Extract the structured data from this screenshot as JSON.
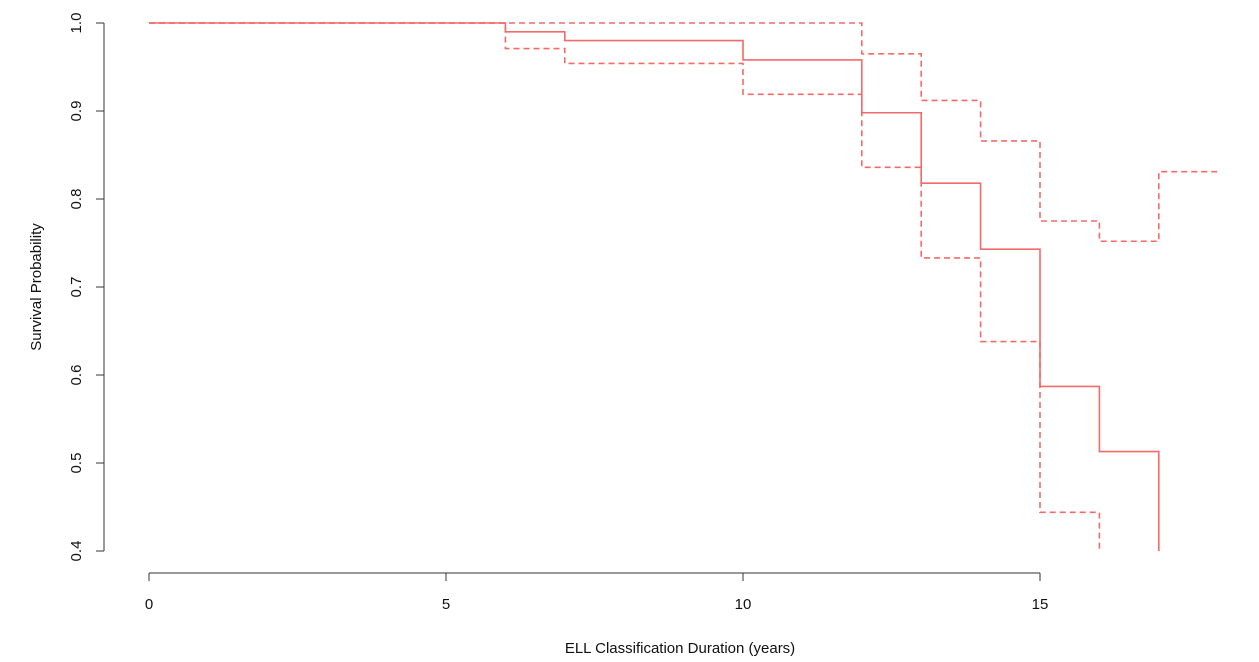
{
  "chart_data": {
    "type": "line",
    "title": "",
    "xlabel": "ELL Classification Duration (years)",
    "ylabel": "Survival Probability",
    "xlim": [
      0,
      18
    ],
    "ylim": [
      0.4,
      1.0
    ],
    "x_ticks": [
      0,
      5,
      10,
      15
    ],
    "x_tick_labels": [
      "0",
      "5",
      "10",
      "15"
    ],
    "y_ticks": [
      0.4,
      0.5,
      0.6,
      0.7,
      0.8,
      0.9,
      1.0
    ],
    "y_tick_labels": [
      "0.4",
      "0.5",
      "0.6",
      "0.7",
      "0.8",
      "0.9",
      "1.0"
    ],
    "grid": false,
    "step": true,
    "series": [
      {
        "style": "solid",
        "color": "#f26b6b",
        "x": [
          0,
          6,
          7,
          10,
          12,
          13,
          14,
          15,
          16,
          17
        ],
        "y": [
          1.0,
          0.99,
          0.98,
          0.958,
          0.898,
          0.818,
          0.743,
          0.587,
          0.513,
          0.4
        ]
      },
      {
        "style": "dashed",
        "color": "#f26b6b",
        "x": [
          0,
          12,
          13,
          14,
          15,
          16,
          17,
          18
        ],
        "y": [
          1.0,
          0.965,
          0.912,
          0.866,
          0.775,
          0.752,
          0.831,
          0.831
        ]
      },
      {
        "style": "dashed",
        "color": "#f26b6b",
        "x": [
          0,
          6,
          7,
          10,
          12,
          13,
          14,
          15,
          16
        ],
        "y": [
          1.0,
          0.971,
          0.954,
          0.919,
          0.836,
          0.733,
          0.638,
          0.444,
          0.4
        ]
      }
    ]
  }
}
